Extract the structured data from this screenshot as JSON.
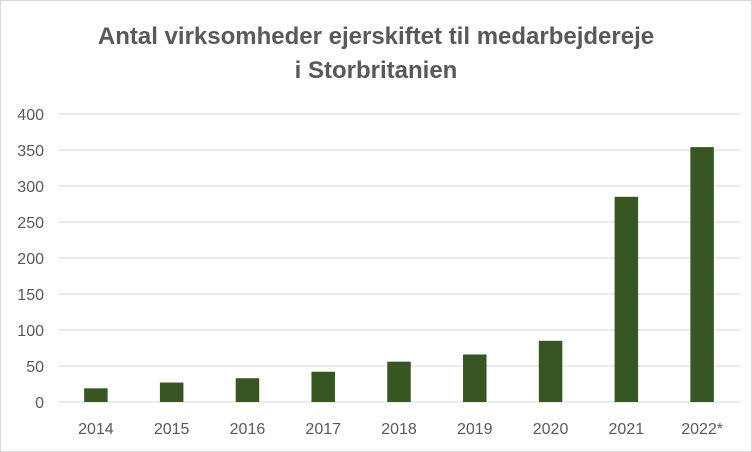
{
  "chart_data": {
    "type": "bar",
    "title_lines": [
      "Antal virksomheder ejerskiftet til medarbejdereje",
      "i Storbritanien"
    ],
    "categories": [
      "2014",
      "2015",
      "2016",
      "2017",
      "2018",
      "2019",
      "2020",
      "2021",
      "2022*"
    ],
    "values": [
      19,
      27,
      33,
      42,
      56,
      66,
      85,
      285,
      354
    ],
    "xlabel": "",
    "ylabel": "",
    "ylim": [
      0,
      400
    ],
    "yticks": [
      0,
      50,
      100,
      150,
      200,
      250,
      300,
      350,
      400
    ],
    "grid": true,
    "legend": "none",
    "bar_color": "#375623",
    "grid_color": "#d9d9d9"
  }
}
